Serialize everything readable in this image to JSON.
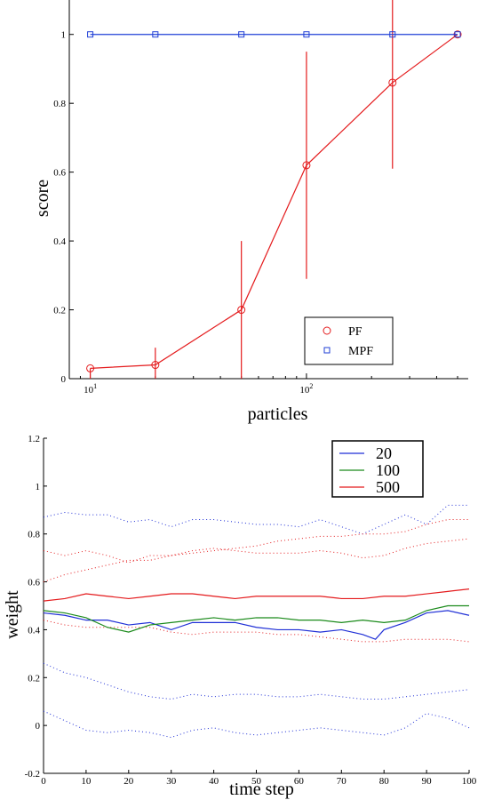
{
  "chart_data": [
    {
      "type": "line",
      "xlabel": "particles",
      "ylabel": "score",
      "x_scale": "log",
      "xlim": [
        8,
        560
      ],
      "ylim": [
        0,
        1.1
      ],
      "x_ticks": [
        {
          "value": 10,
          "base": "10",
          "exp": "1"
        },
        {
          "value": 100,
          "base": "10",
          "exp": "2"
        }
      ],
      "y_ticks": [
        0,
        0.2,
        0.4,
        0.6,
        0.8,
        1
      ],
      "y_tick_labels": [
        "0",
        "0.2",
        "0.4",
        "0.6",
        "0.8",
        "1"
      ],
      "legend_position": "bottom-right",
      "series": [
        {
          "name": "PF",
          "color": "#e41a1c",
          "marker": "circle",
          "x": [
            10,
            20,
            50,
            100,
            250,
            500
          ],
          "y": [
            0.03,
            0.04,
            0.2,
            0.62,
            0.86,
            1.0
          ],
          "err_low": [
            0.03,
            0.04,
            0.2,
            0.33,
            0.25,
            0.0
          ],
          "err_high": [
            0.0,
            0.05,
            0.2,
            0.33,
            0.25,
            0.0
          ]
        },
        {
          "name": "MPF",
          "color": "#1f3fd6",
          "marker": "square",
          "x": [
            10,
            20,
            50,
            100,
            250,
            500
          ],
          "y": [
            1.0,
            1.0,
            1.0,
            1.0,
            1.0,
            1.0
          ]
        }
      ]
    },
    {
      "type": "line",
      "xlabel": "time step",
      "ylabel": "weight",
      "xlim": [
        0,
        100
      ],
      "ylim": [
        -0.2,
        1.2
      ],
      "x_ticks": [
        0,
        10,
        20,
        30,
        40,
        50,
        60,
        70,
        80,
        90,
        100
      ],
      "y_ticks": [
        -0.2,
        0,
        0.2,
        0.4,
        0.6,
        0.8,
        1,
        1.2
      ],
      "y_tick_labels": [
        "-0.2",
        "0",
        "0.2",
        "0.4",
        "0.6",
        "0.8",
        "1",
        "1.2"
      ],
      "legend_position": "top-right",
      "series": [
        {
          "name": "20",
          "color": "#1f2fd6",
          "style": "solid",
          "x": [
            0,
            5,
            10,
            15,
            20,
            25,
            30,
            35,
            40,
            45,
            50,
            55,
            60,
            65,
            70,
            75,
            78,
            80,
            85,
            90,
            95,
            100
          ],
          "y": [
            0.47,
            0.46,
            0.44,
            0.44,
            0.42,
            0.43,
            0.4,
            0.43,
            0.43,
            0.43,
            0.41,
            0.4,
            0.4,
            0.39,
            0.4,
            0.38,
            0.36,
            0.4,
            0.43,
            0.47,
            0.48,
            0.46
          ]
        },
        {
          "name": "100",
          "color": "#1a8a1a",
          "style": "solid",
          "x": [
            0,
            5,
            10,
            15,
            20,
            25,
            30,
            35,
            40,
            45,
            50,
            55,
            60,
            65,
            70,
            75,
            80,
            85,
            90,
            95,
            100
          ],
          "y": [
            0.48,
            0.47,
            0.45,
            0.41,
            0.39,
            0.42,
            0.43,
            0.44,
            0.45,
            0.44,
            0.45,
            0.45,
            0.44,
            0.44,
            0.43,
            0.44,
            0.43,
            0.44,
            0.48,
            0.5,
            0.5
          ]
        },
        {
          "name": "500",
          "color": "#e41a1c",
          "style": "solid",
          "x": [
            0,
            5,
            10,
            15,
            20,
            25,
            30,
            35,
            40,
            45,
            50,
            55,
            60,
            65,
            70,
            75,
            80,
            85,
            90,
            95,
            100
          ],
          "y": [
            0.52,
            0.53,
            0.55,
            0.54,
            0.53,
            0.54,
            0.55,
            0.55,
            0.54,
            0.53,
            0.54,
            0.54,
            0.54,
            0.54,
            0.53,
            0.53,
            0.54,
            0.54,
            0.55,
            0.56,
            0.57
          ]
        },
        {
          "color": "#1f2fd6",
          "style": "dotted",
          "x": [
            0,
            5,
            10,
            15,
            20,
            25,
            30,
            35,
            40,
            45,
            50,
            55,
            60,
            65,
            70,
            75,
            80,
            85,
            90,
            95,
            100
          ],
          "y": [
            0.87,
            0.89,
            0.88,
            0.88,
            0.85,
            0.86,
            0.83,
            0.86,
            0.86,
            0.85,
            0.84,
            0.84,
            0.83,
            0.86,
            0.83,
            0.8,
            0.84,
            0.88,
            0.84,
            0.92,
            0.92
          ]
        },
        {
          "color": "#1f2fd6",
          "style": "dotted",
          "x": [
            0,
            5,
            10,
            15,
            20,
            25,
            30,
            35,
            40,
            45,
            50,
            55,
            60,
            65,
            70,
            75,
            80,
            85,
            90,
            95,
            100
          ],
          "y": [
            0.06,
            0.02,
            -0.02,
            -0.03,
            -0.02,
            -0.03,
            -0.05,
            -0.02,
            -0.01,
            -0.03,
            -0.04,
            -0.03,
            -0.02,
            -0.01,
            -0.02,
            -0.03,
            -0.04,
            -0.01,
            0.05,
            0.03,
            -0.01
          ]
        },
        {
          "color": "#e41a1c",
          "style": "dotted",
          "x": [
            0,
            5,
            10,
            15,
            20,
            25,
            30,
            35,
            40,
            45,
            50,
            55,
            60,
            65,
            70,
            75,
            80,
            85,
            90,
            95,
            100
          ],
          "y": [
            0.73,
            0.71,
            0.73,
            0.71,
            0.68,
            0.71,
            0.71,
            0.73,
            0.74,
            0.73,
            0.72,
            0.72,
            0.72,
            0.73,
            0.72,
            0.7,
            0.71,
            0.74,
            0.76,
            0.77,
            0.78
          ]
        },
        {
          "color": "#e41a1c",
          "style": "dotted",
          "x": [
            0,
            5,
            10,
            15,
            20,
            25,
            30,
            35,
            40,
            45,
            50,
            55,
            60,
            65,
            70,
            75,
            80,
            85,
            90,
            95,
            100
          ],
          "y": [
            0.6,
            0.63,
            0.65,
            0.67,
            0.69,
            0.69,
            0.71,
            0.72,
            0.73,
            0.74,
            0.75,
            0.77,
            0.78,
            0.79,
            0.79,
            0.8,
            0.8,
            0.81,
            0.84,
            0.86,
            0.86
          ]
        },
        {
          "color": "#e41a1c",
          "style": "dotted",
          "x": [
            0,
            5,
            10,
            15,
            20,
            25,
            30,
            35,
            40,
            45,
            50,
            55,
            60,
            65,
            70,
            75,
            80,
            85,
            90,
            95,
            100
          ],
          "y": [
            0.44,
            0.42,
            0.41,
            0.41,
            0.41,
            0.41,
            0.39,
            0.38,
            0.39,
            0.39,
            0.39,
            0.38,
            0.38,
            0.37,
            0.36,
            0.35,
            0.35,
            0.36,
            0.36,
            0.36,
            0.35
          ]
        },
        {
          "color": "#1f2fd6",
          "style": "dotted",
          "x": [
            0,
            5,
            10,
            15,
            20,
            25,
            30,
            35,
            40,
            45,
            50,
            55,
            60,
            65,
            70,
            75,
            80,
            85,
            90,
            95,
            100
          ],
          "y": [
            0.26,
            0.22,
            0.2,
            0.17,
            0.14,
            0.12,
            0.11,
            0.13,
            0.12,
            0.13,
            0.13,
            0.12,
            0.12,
            0.13,
            0.12,
            0.11,
            0.11,
            0.12,
            0.13,
            0.14,
            0.15
          ]
        }
      ]
    }
  ]
}
